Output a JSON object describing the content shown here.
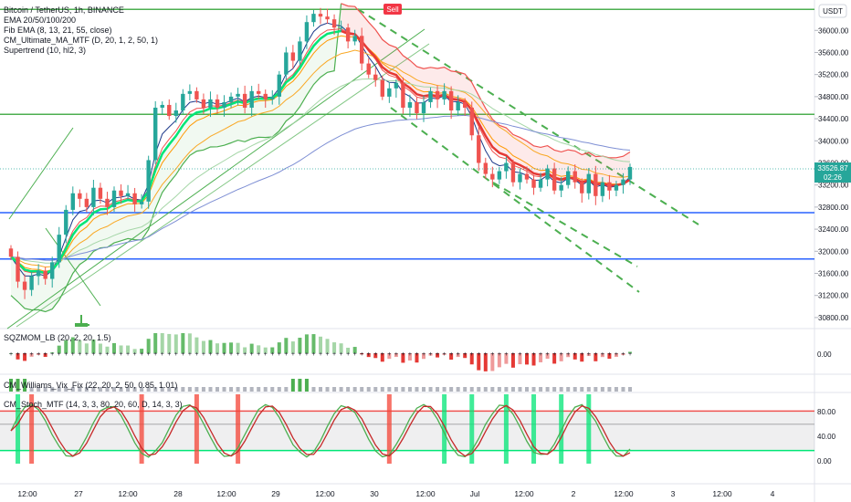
{
  "header": {
    "symbol": "Bitcoin / TetherUS, 1h, BINANCE",
    "currency": "USDT",
    "indicators": [
      "EMA 20/50/100/200",
      "Fib EMA (8, 13, 21, 55, close)",
      "CM_Ultimate_MA_MTF (D, 20, 1, 2, 50, 1)",
      "Supertrend (10, hl2, 3)"
    ]
  },
  "signals": {
    "sell_label": "Sell"
  },
  "price_tag": {
    "price": "33526.87",
    "countdown": "02:26"
  },
  "panes": {
    "sqz_title": "SQZMOM_LB (20, 2, 20, 1.5)",
    "sqz_zero": "0.00",
    "wvf_title": "CM_Williams_Vix_Fix (22, 20, 2, 50, 0.85, 1.01)",
    "stoch_title": "CM_Stoch_MTF (14, 3, 3, 80, 20, 60, D, 14, 3, 3)",
    "stoch_ticks": [
      "80.00",
      "40.00",
      "0.00"
    ]
  },
  "chart_data": {
    "type": "candlestick",
    "y_axis_labels": [
      "36000.00",
      "35600.00",
      "35200.00",
      "34800.00",
      "34400.00",
      "34000.00",
      "33600.00",
      "33200.00",
      "32800.00",
      "32400.00",
      "32000.00",
      "31600.00",
      "31200.00",
      "30800.00"
    ],
    "ylim": [
      30600,
      36550
    ],
    "x_axis_labels": [
      "12:00",
      "27",
      "12:00",
      "28",
      "12:00",
      "29",
      "12:00",
      "30",
      "12:00",
      "Jul",
      "12:00",
      "2",
      "12:00",
      "3",
      "12:00",
      "4"
    ],
    "horizontal_levels": [
      {
        "price": 36380,
        "color": "#4caf50"
      },
      {
        "price": 34480,
        "color": "#4caf50"
      },
      {
        "price": 32700,
        "color": "#2962ff"
      },
      {
        "price": 31860,
        "color": "#2962ff"
      }
    ],
    "close_series": [
      31900,
      31450,
      31300,
      31550,
      31650,
      31500,
      31800,
      32300,
      32750,
      33050,
      32950,
      32800,
      33150,
      32950,
      32800,
      33100,
      33000,
      33050,
      32850,
      32900,
      33650,
      34600,
      34650,
      34450,
      34550,
      34850,
      34900,
      34750,
      34600,
      34750,
      34600,
      34700,
      34800,
      34850,
      34600,
      34900,
      34850,
      34750,
      34800,
      35200,
      35600,
      35450,
      35800,
      36150,
      36300,
      36250,
      36200,
      36050,
      36050,
      35800,
      35900,
      35400,
      35200,
      35100,
      34800,
      34950,
      35050,
      34600,
      34700,
      34500,
      34700,
      34900,
      34750,
      34900,
      34550,
      34700,
      34600,
      34100,
      33600,
      33400,
      33300,
      33450,
      33600,
      33250,
      33400,
      33300,
      33150,
      33300,
      33500,
      33100,
      33200,
      33450,
      33250,
      33050,
      33400,
      33000,
      33250,
      33100,
      33200,
      33300,
      33527
    ],
    "series": [
      {
        "name": "EMA 20/50/100/200",
        "color": "#e53935"
      }
    ],
    "annotations": [
      "Sell"
    ]
  }
}
